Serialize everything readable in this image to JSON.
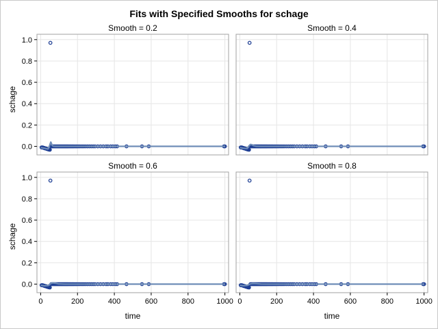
{
  "chart_data": {
    "type": "scatter",
    "title": "Fits with Specified Smooths for schage",
    "xlabel": "time",
    "ylabel": "schage",
    "xlim": [
      -20,
      1020
    ],
    "ylim": [
      -0.08,
      1.05
    ],
    "xticks": [
      0,
      200,
      400,
      600,
      800,
      1000
    ],
    "yticks": [
      0.0,
      0.2,
      0.4,
      0.6,
      0.8,
      1.0
    ],
    "xtick_labels": [
      "0",
      "200",
      "400",
      "600",
      "800",
      "1000"
    ],
    "ytick_labels": [
      "0.0",
      "0.2",
      "0.4",
      "0.6",
      "0.8",
      "1.0"
    ],
    "grid": true,
    "points": [
      [
        5,
        -0.01
      ],
      [
        8,
        -0.01
      ],
      [
        11,
        -0.01
      ],
      [
        14,
        -0.012
      ],
      [
        17,
        -0.015
      ],
      [
        20,
        -0.015
      ],
      [
        23,
        -0.018
      ],
      [
        26,
        -0.02
      ],
      [
        29,
        -0.02
      ],
      [
        32,
        -0.022
      ],
      [
        35,
        -0.025
      ],
      [
        38,
        -0.025
      ],
      [
        41,
        -0.028
      ],
      [
        44,
        -0.03
      ],
      [
        47,
        -0.03
      ],
      [
        50,
        -0.032
      ],
      [
        53,
        0.97
      ],
      [
        58,
        0.0
      ],
      [
        62,
        0.0
      ],
      [
        66,
        0.0
      ],
      [
        70,
        0.0
      ],
      [
        74,
        0.0
      ],
      [
        78,
        0.0
      ],
      [
        82,
        0.0
      ],
      [
        86,
        0.0
      ],
      [
        90,
        0.0
      ],
      [
        94,
        0.0
      ],
      [
        98,
        0.0
      ],
      [
        102,
        0.0
      ],
      [
        106,
        0.0
      ],
      [
        110,
        0.0
      ],
      [
        114,
        0.0
      ],
      [
        118,
        0.0
      ],
      [
        122,
        0.0
      ],
      [
        126,
        0.0
      ],
      [
        130,
        0.0
      ],
      [
        134,
        0.0
      ],
      [
        138,
        0.0
      ],
      [
        142,
        0.0
      ],
      [
        146,
        0.0
      ],
      [
        150,
        0.0
      ],
      [
        155,
        0.0
      ],
      [
        160,
        0.0
      ],
      [
        165,
        0.0
      ],
      [
        170,
        0.0
      ],
      [
        175,
        0.0
      ],
      [
        180,
        0.0
      ],
      [
        186,
        0.0
      ],
      [
        192,
        0.0
      ],
      [
        198,
        0.0
      ],
      [
        205,
        0.0
      ],
      [
        212,
        0.0
      ],
      [
        220,
        0.0
      ],
      [
        228,
        0.0
      ],
      [
        236,
        0.0
      ],
      [
        245,
        0.0
      ],
      [
        255,
        0.0
      ],
      [
        265,
        0.0
      ],
      [
        275,
        0.0
      ],
      [
        285,
        0.0
      ],
      [
        295,
        0.0
      ],
      [
        310,
        0.0
      ],
      [
        325,
        0.0
      ],
      [
        340,
        0.0
      ],
      [
        355,
        0.0
      ],
      [
        365,
        0.0
      ],
      [
        380,
        0.0
      ],
      [
        392,
        0.0
      ],
      [
        405,
        0.0
      ],
      [
        415,
        0.0
      ],
      [
        466,
        0.0
      ],
      [
        550,
        0.0
      ],
      [
        587,
        0.0
      ],
      [
        995,
        0.0
      ],
      [
        1000,
        0.0
      ]
    ],
    "panels": [
      {
        "label": "Smooth = 0.2",
        "fit": [
          [
            0,
            -0.012
          ],
          [
            20,
            -0.018
          ],
          [
            40,
            -0.025
          ],
          [
            46,
            -0.005
          ],
          [
            52,
            0.025
          ],
          [
            55,
            0.04
          ],
          [
            58,
            0.03
          ],
          [
            62,
            0.01
          ],
          [
            68,
            0.002
          ],
          [
            80,
            0.0
          ],
          [
            150,
            0.0
          ],
          [
            400,
            0.0
          ],
          [
            1000,
            0.0
          ]
        ]
      },
      {
        "label": "Smooth = 0.4",
        "fit": [
          [
            0,
            -0.012
          ],
          [
            20,
            -0.018
          ],
          [
            40,
            -0.02
          ],
          [
            50,
            0.005
          ],
          [
            58,
            0.018
          ],
          [
            66,
            0.015
          ],
          [
            76,
            0.006
          ],
          [
            90,
            0.001
          ],
          [
            120,
            0.0
          ],
          [
            400,
            0.0
          ],
          [
            1000,
            0.0
          ]
        ]
      },
      {
        "label": "Smooth = 0.6",
        "fit": [
          [
            0,
            -0.012
          ],
          [
            20,
            -0.016
          ],
          [
            40,
            -0.014
          ],
          [
            55,
            0.006
          ],
          [
            66,
            0.012
          ],
          [
            78,
            0.009
          ],
          [
            95,
            0.003
          ],
          [
            130,
            0.0
          ],
          [
            400,
            0.0
          ],
          [
            1000,
            0.0
          ]
        ]
      },
      {
        "label": "Smooth = 0.8",
        "fit": [
          [
            0,
            -0.012
          ],
          [
            20,
            -0.015
          ],
          [
            40,
            -0.012
          ],
          [
            58,
            0.003
          ],
          [
            72,
            0.006
          ],
          [
            90,
            0.004
          ],
          [
            115,
            0.001
          ],
          [
            160,
            0.0
          ],
          [
            400,
            0.0
          ],
          [
            1000,
            0.0
          ]
        ]
      }
    ]
  }
}
